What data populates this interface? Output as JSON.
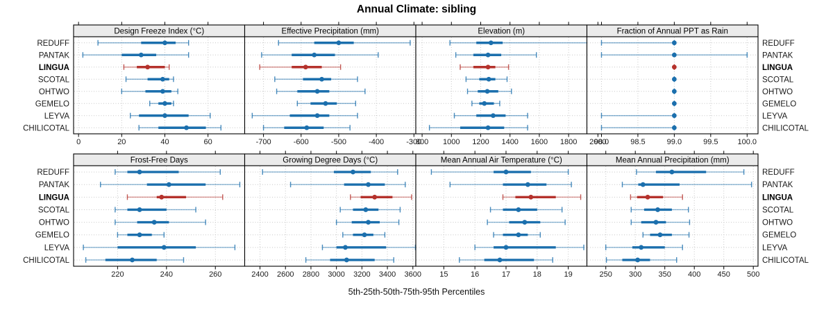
{
  "chart_data": {
    "type": "dot-whisker-trellis",
    "title": "Annual Climate: sibling",
    "caption": "5th-25th-50th-75th-95th Percentiles",
    "percentiles": [
      5,
      25,
      50,
      75,
      95
    ],
    "sites": [
      "REDUFF",
      "PANTAK",
      "LINGUA",
      "SCOTAL",
      "OHTWO",
      "GEMELO",
      "LEYVA",
      "CHILICOTAL"
    ],
    "highlight_site": "LINGUA",
    "colors": {
      "series": "#1b6fad",
      "highlight": "#b5322c",
      "strip_bg": "#ebebeb",
      "grid": "#c6c6c6",
      "border": "#000000"
    },
    "legend_position": "none",
    "grid": "dotted",
    "panels": [
      {
        "label": "Design Freeze Index (°C)",
        "xlim": [
          -2.3,
          77
        ],
        "ticks": [
          0,
          20,
          40,
          60
        ],
        "tick_labels": [
          "0",
          "20",
          "40",
          "60"
        ],
        "series": [
          [
            9,
            29,
            40,
            45,
            51
          ],
          [
            2,
            20,
            29,
            36,
            51
          ],
          [
            21,
            27,
            32,
            40,
            42
          ],
          [
            22,
            32,
            39,
            42,
            44
          ],
          [
            20,
            31,
            39,
            43,
            46
          ],
          [
            33,
            37,
            40,
            43,
            44
          ],
          [
            24,
            28,
            40,
            51,
            61
          ],
          [
            28,
            37,
            50,
            59,
            66
          ]
        ]
      },
      {
        "label": "Effective Precipitation (mm)",
        "xlim": [
          -750,
          -295
        ],
        "ticks": [
          -700,
          -600,
          -500,
          -400,
          -300
        ],
        "tick_labels": [
          "-700",
          "-600",
          "-500",
          "-400",
          "-300"
        ],
        "series": [
          [
            -660,
            -565,
            -500,
            -460,
            -310
          ],
          [
            -705,
            -625,
            -565,
            -510,
            -395
          ],
          [
            -710,
            -625,
            -588,
            -545,
            -495
          ],
          [
            -670,
            -595,
            -545,
            -520,
            -450
          ],
          [
            -665,
            -610,
            -557,
            -525,
            -430
          ],
          [
            -610,
            -575,
            -535,
            -505,
            -455
          ],
          [
            -730,
            -630,
            -557,
            -525,
            -450
          ],
          [
            -700,
            -645,
            -585,
            -540,
            -470
          ]
        ]
      },
      {
        "label": "Elevation (m)",
        "xlim": [
          757,
          1925
        ],
        "ticks": [
          800,
          1000,
          1200,
          1400,
          1600,
          1800,
          2000
        ],
        "tick_labels": [
          "800",
          "1000",
          "1200",
          "1400",
          "1600",
          "1800",
          "2000"
        ],
        "series": [
          [
            990,
            1170,
            1270,
            1350,
            1960
          ],
          [
            1030,
            1150,
            1250,
            1340,
            1580
          ],
          [
            1060,
            1150,
            1250,
            1300,
            1390
          ],
          [
            1100,
            1190,
            1255,
            1300,
            1380
          ],
          [
            1110,
            1180,
            1245,
            1320,
            1410
          ],
          [
            1140,
            1190,
            1225,
            1290,
            1330
          ],
          [
            1020,
            1170,
            1285,
            1370,
            1520
          ],
          [
            850,
            1060,
            1250,
            1360,
            1520
          ]
        ]
      },
      {
        "label": "Fraction of Annual PPT as Rain",
        "xlim": [
          97.8,
          100.15
        ],
        "ticks": [
          98.0,
          98.5,
          99.0,
          99.5,
          100.0
        ],
        "tick_labels": [
          "98.0",
          "98.5",
          "99.0",
          "99.5",
          "100.0"
        ],
        "series": [
          [
            98.0,
            99.0,
            99.0,
            99.0,
            99.0
          ],
          [
            98.0,
            99.0,
            99.0,
            99.0,
            100.0
          ],
          [
            99.0,
            99.0,
            99.0,
            99.0,
            99.0
          ],
          [
            99.0,
            99.0,
            99.0,
            99.0,
            99.0
          ],
          [
            99.0,
            99.0,
            99.0,
            99.0,
            99.0
          ],
          [
            99.0,
            99.0,
            99.0,
            99.0,
            99.0
          ],
          [
            98.0,
            99.0,
            99.0,
            99.0,
            99.0
          ],
          [
            98.0,
            99.0,
            99.0,
            99.0,
            99.0
          ]
        ]
      },
      {
        "label": "Frost-Free Days",
        "xlim": [
          202,
          272
        ],
        "ticks": [
          220,
          240,
          260
        ],
        "tick_labels": [
          "220",
          "240",
          "260"
        ],
        "series": [
          [
            219,
            224,
            229,
            245,
            262
          ],
          [
            213,
            232,
            241,
            256,
            270
          ],
          [
            224,
            236,
            238,
            248,
            263
          ],
          [
            219,
            224,
            229,
            240,
            252
          ],
          [
            219,
            228,
            235,
            241,
            256
          ],
          [
            220,
            224,
            229,
            234,
            239
          ],
          [
            206,
            220,
            239,
            252,
            268
          ],
          [
            207,
            215,
            226,
            236,
            247
          ]
        ]
      },
      {
        "label": "Growing Degree Days (°C)",
        "xlim": [
          2280,
          3623
        ],
        "ticks": [
          2400,
          2600,
          2800,
          3000,
          3200,
          3400,
          3600
        ],
        "tick_labels": [
          "2400",
          "2600",
          "2800",
          "3000",
          "3200",
          "3400",
          "3600"
        ],
        "series": [
          [
            2420,
            2980,
            3130,
            3270,
            3480
          ],
          [
            2640,
            3060,
            3250,
            3380,
            3540
          ],
          [
            3110,
            3190,
            3300,
            3440,
            3590
          ],
          [
            3030,
            3130,
            3230,
            3330,
            3500
          ],
          [
            3000,
            3120,
            3250,
            3340,
            3490
          ],
          [
            3050,
            3130,
            3220,
            3290,
            3380
          ],
          [
            2890,
            3000,
            3070,
            3390,
            3620
          ],
          [
            2760,
            2950,
            3080,
            3300,
            3450
          ]
        ]
      },
      {
        "label": "Mean Annual Air Temperature (°C)",
        "xlim": [
          14.1,
          19.6
        ],
        "ticks": [
          15,
          16,
          17,
          18,
          19
        ],
        "tick_labels": [
          "15",
          "16",
          "17",
          "18",
          "19"
        ],
        "series": [
          [
            14.6,
            16.6,
            17.0,
            17.8,
            19.0
          ],
          [
            15.2,
            16.9,
            17.7,
            18.3,
            19.1
          ],
          [
            16.9,
            17.3,
            17.8,
            18.6,
            19.4
          ],
          [
            16.5,
            16.9,
            17.4,
            18.0,
            18.8
          ],
          [
            16.4,
            17.1,
            17.6,
            18.1,
            18.9
          ],
          [
            16.6,
            16.9,
            17.4,
            17.7,
            18.1
          ],
          [
            16.0,
            16.6,
            17.0,
            18.6,
            19.5
          ],
          [
            15.5,
            16.3,
            16.8,
            17.9,
            18.5
          ]
        ]
      },
      {
        "label": "Mean Annual Precipitation (mm)",
        "xlim": [
          218,
          508
        ],
        "ticks": [
          250,
          300,
          350,
          400,
          450,
          500
        ],
        "tick_labels": [
          "250",
          "300",
          "350",
          "400",
          "450",
          "500"
        ],
        "series": [
          [
            302,
            335,
            362,
            420,
            484
          ],
          [
            278,
            305,
            313,
            375,
            497
          ],
          [
            292,
            303,
            321,
            347,
            380
          ],
          [
            293,
            315,
            338,
            362,
            390
          ],
          [
            293,
            310,
            335,
            352,
            392
          ],
          [
            313,
            325,
            342,
            362,
            391
          ],
          [
            250,
            295,
            310,
            350,
            380
          ],
          [
            251,
            278,
            304,
            325,
            370
          ]
        ]
      }
    ]
  }
}
